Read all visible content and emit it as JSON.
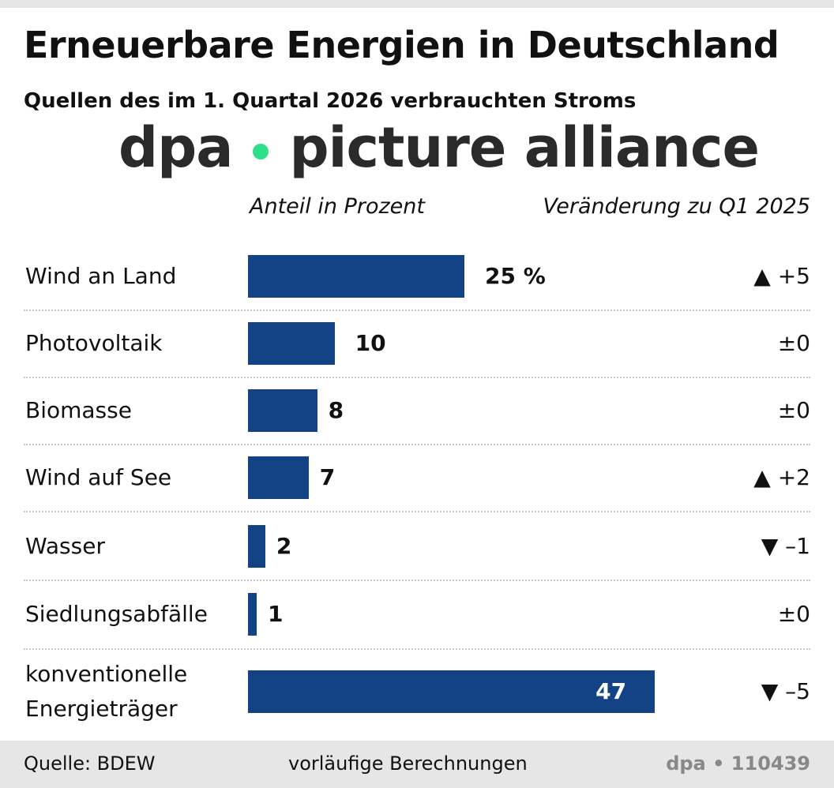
{
  "title": "Erneuerbare Energien in Deutschland",
  "subtitle": "Quellen des im 1. Quartal 2026 verbrauchten Stroms",
  "colors": {
    "bar": "#134384",
    "background_band": "#e6e6e6",
    "watermark_dot": "#2ee08a"
  },
  "chart_data": {
    "type": "bar",
    "orientation": "horizontal",
    "value_header": "Anteil in Prozent",
    "change_header": "Veränderung zu Q1 2025",
    "categories": [
      "Wind an Land",
      "Photovoltaik",
      "Biomasse",
      "Wind auf See",
      "Wasser",
      "Siedlungsabfälle",
      "konventionelle Energieträger"
    ],
    "values": [
      25,
      10,
      8,
      7,
      2,
      1,
      47
    ],
    "value_labels": [
      "25 %",
      "10",
      "8",
      "7",
      "2",
      "1",
      "47"
    ],
    "changes": [
      "▲ +5",
      "±0",
      "±0",
      "▲ +2",
      "▼ –1",
      "±0",
      "▼ –5"
    ],
    "xlim": [
      0,
      100
    ]
  },
  "footer": {
    "source": "Quelle: BDEW",
    "note": "vorläufige Berechnungen",
    "credit": "dpa • 110439"
  },
  "watermark": {
    "left": "dpa",
    "right": "picture alliance"
  }
}
